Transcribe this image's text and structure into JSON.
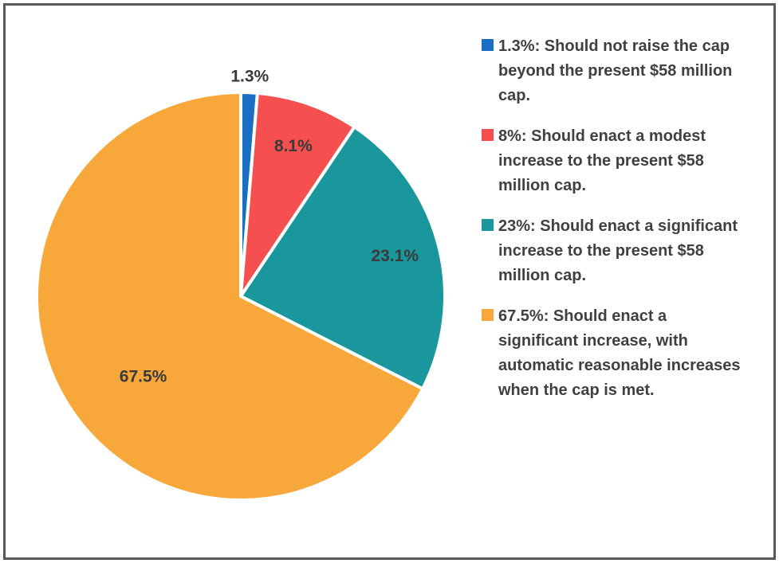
{
  "chart_data": {
    "type": "pie",
    "title": "",
    "slices": [
      {
        "value": 1.3,
        "label": "1.3%",
        "color": "#1a6fc4",
        "legend": "1.3%:  Should not raise the cap beyond the present $58 million cap."
      },
      {
        "value": 8.1,
        "label": "8.1%",
        "color": "#f5504f",
        "legend": "8%:  Should enact a modest increase to the present $58 million cap."
      },
      {
        "value": 23.1,
        "label": "23.1%",
        "color": "#1a979c",
        "legend": "23%:  Should enact a significant increase to the present $58 million cap."
      },
      {
        "value": 67.5,
        "label": "67.5%",
        "color": "#f8a73a",
        "legend": "67.5%:  Should enact a significant increase, with automatic reasonable increases when the cap is met."
      }
    ],
    "legend_position": "right"
  }
}
